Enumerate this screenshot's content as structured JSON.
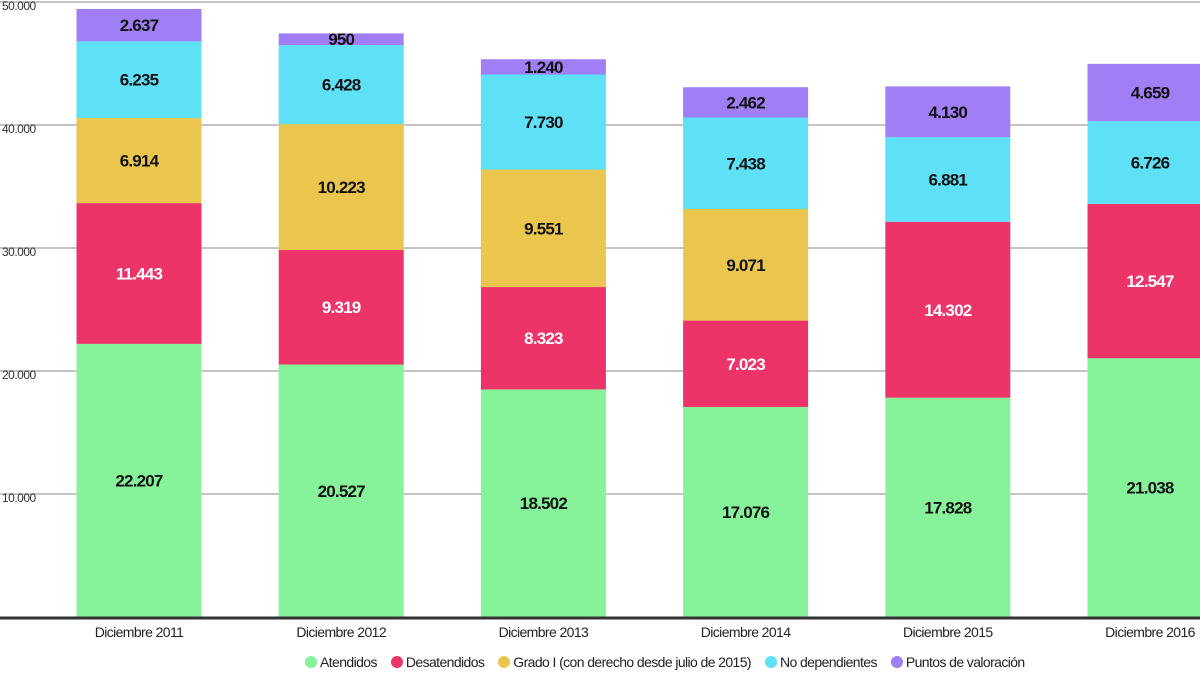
{
  "chart_data": {
    "type": "bar",
    "stacked": true,
    "categories": [
      "Diciembre 2011",
      "Diciembre 2012",
      "Diciembre 2013",
      "Diciembre 2014",
      "Diciembre 2015",
      "Diciembre 2016"
    ],
    "series": [
      {
        "name": "Atendidos",
        "color": "#86f29a",
        "label_color": "#111111",
        "values": [
          22207,
          20527,
          18502,
          17076,
          17828,
          21038
        ],
        "labels": [
          "22.207",
          "20.527",
          "18.502",
          "17.076",
          "17.828",
          "21.038"
        ]
      },
      {
        "name": "Desatendidos",
        "color": "#ec3468",
        "label_color": "#ffffff",
        "values": [
          11443,
          9319,
          8323,
          7023,
          14302,
          12547
        ],
        "labels": [
          "11.443",
          "9.319",
          "8.323",
          "7.023",
          "14.302",
          "12.547"
        ]
      },
      {
        "name": "Grado I (con derecho desde julio de 2015)",
        "color": "#ebc64e",
        "label_color": "#111111",
        "values": [
          6914,
          10223,
          9551,
          9071,
          0,
          0
        ],
        "labels": [
          "6.914",
          "10.223",
          "9.551",
          "9.071",
          "",
          ""
        ]
      },
      {
        "name": "No dependientes",
        "color": "#5ee0f7",
        "label_color": "#111111",
        "values": [
          6235,
          6428,
          7730,
          7438,
          6881,
          6726
        ],
        "labels": [
          "6.235",
          "6.428",
          "7.730",
          "7.438",
          "6.881",
          "6.726"
        ]
      },
      {
        "name": "Puntos de valoración",
        "color": "#a07ef5",
        "label_color": "#111111",
        "values": [
          2637,
          950,
          1240,
          2462,
          4130,
          4659
        ],
        "labels": [
          "2.637",
          "950",
          "1.240",
          "2.462",
          "4.130",
          "4.659"
        ]
      }
    ],
    "ylim": [
      0,
      50000
    ],
    "yticks": [
      10000,
      20000,
      30000,
      40000,
      50000
    ],
    "ytick_labels": [
      "10.000",
      "20.000",
      "30.000",
      "40.000",
      "50.000"
    ],
    "grid": true,
    "legend_position": "bottom"
  }
}
